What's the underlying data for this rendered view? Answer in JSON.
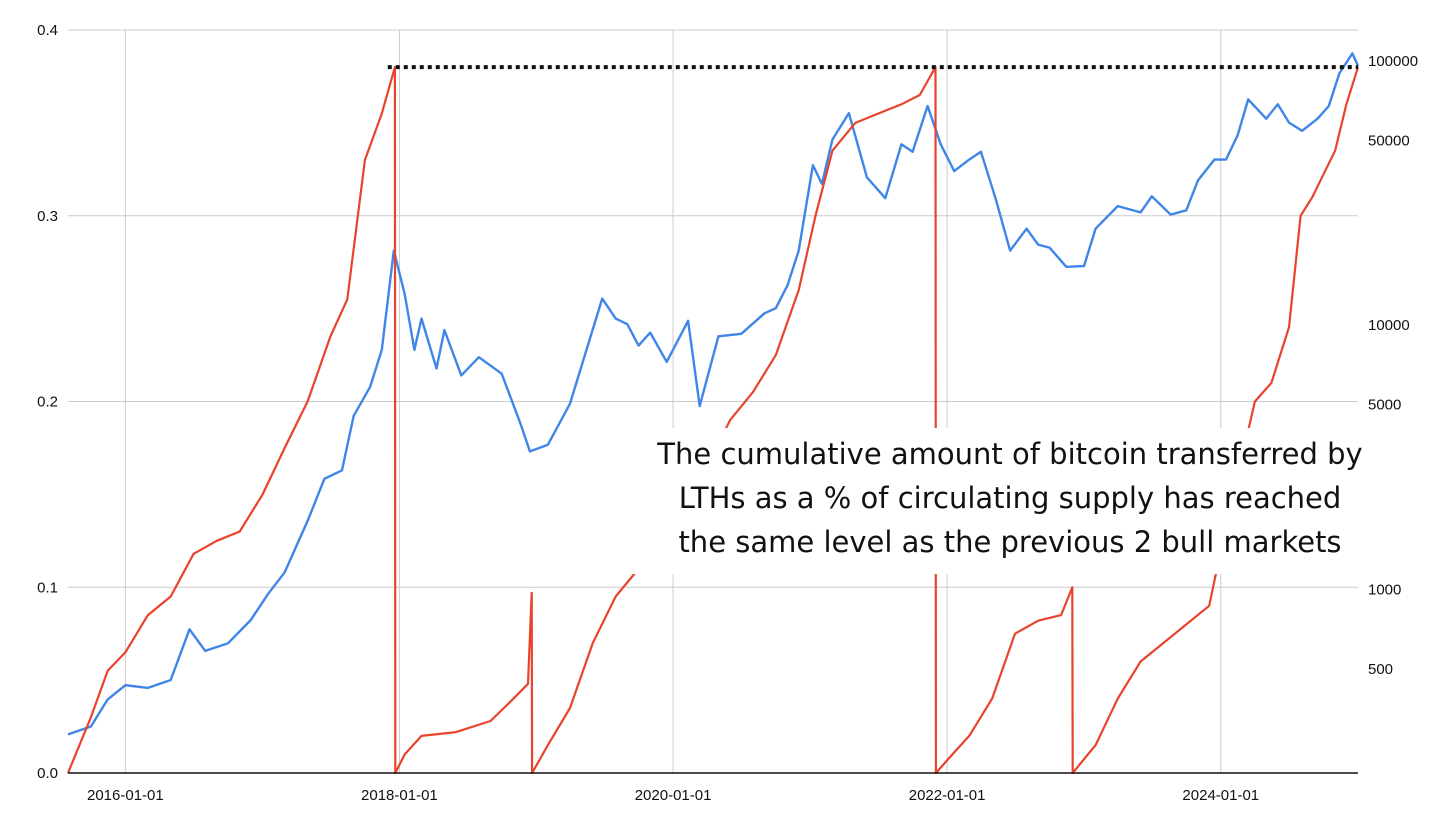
{
  "annotation": {
    "lines": [
      "The cumulative amount of bitcoin transferred by",
      "LTHs as a % of circulating supply has reached",
      "the same level as the previous 2 bull markets"
    ]
  },
  "colors": {
    "transferred_series": "#e8432d",
    "price_series": "#3f86e8",
    "reference_line": "#111111",
    "grid": "#cccccc",
    "axis": "#111111"
  },
  "chart_data": {
    "type": "line",
    "title": "",
    "xlabel": "",
    "ylabel": "",
    "ylabel_right": "",
    "grid": true,
    "x_range": [
      "2015-08-01",
      "2025-01-01"
    ],
    "y_left": {
      "range": [
        0,
        0.4
      ],
      "ticks": [
        0,
        0.1,
        0.2,
        0.3,
        0.4
      ],
      "tick_labels": [
        "0.0",
        "0.1",
        "0.2",
        "0.3",
        "0.4"
      ]
    },
    "y_right": {
      "scale": "log",
      "range": [
        200,
        130000
      ],
      "tick_values": [
        500,
        1000,
        5000,
        10000,
        50000,
        100000
      ],
      "tick_labels": [
        "500",
        "1000",
        "5000",
        "10000",
        "50000",
        "100000"
      ]
    },
    "x_ticks": [
      "2016-01-01",
      "2018-01-01",
      "2020-01-01",
      "2022-01-01",
      "2024-01-01"
    ],
    "reference_line": {
      "y": 0.38,
      "x_start": "2017-12-01",
      "x_end": "2025-01-01",
      "style": "dotted"
    },
    "series": [
      {
        "axis": "left",
        "points": [
          [
            "2015-08-01",
            0.0
          ],
          [
            "2015-10-01",
            0.03
          ],
          [
            "2015-11-15",
            0.055
          ],
          [
            "2016-01-01",
            0.065
          ],
          [
            "2016-03-01",
            0.085
          ],
          [
            "2016-05-01",
            0.095
          ],
          [
            "2016-07-01",
            0.118
          ],
          [
            "2016-09-01",
            0.125
          ],
          [
            "2016-11-01",
            0.13
          ],
          [
            "2017-01-01",
            0.15
          ],
          [
            "2017-03-01",
            0.175
          ],
          [
            "2017-05-01",
            0.2
          ],
          [
            "2017-07-01",
            0.235
          ],
          [
            "2017-08-15",
            0.255
          ],
          [
            "2017-10-01",
            0.33
          ],
          [
            "2017-11-15",
            0.355
          ],
          [
            "2017-12-20",
            0.38
          ],
          [
            "2017-12-21",
            0.0
          ],
          [
            "2018-01-15",
            0.01
          ],
          [
            "2018-03-01",
            0.02
          ],
          [
            "2018-06-01",
            0.022
          ],
          [
            "2018-09-01",
            0.028
          ],
          [
            "2018-11-01",
            0.04
          ],
          [
            "2018-12-10",
            0.048
          ],
          [
            "2018-12-20",
            0.097
          ],
          [
            "2018-12-21",
            0.0
          ],
          [
            "2019-02-01",
            0.015
          ],
          [
            "2019-04-01",
            0.035
          ],
          [
            "2019-06-01",
            0.07
          ],
          [
            "2019-08-01",
            0.095
          ],
          [
            "2019-10-01",
            0.11
          ],
          [
            "2019-12-01",
            0.125
          ],
          [
            "2020-02-01",
            0.14
          ],
          [
            "2020-04-01",
            0.165
          ],
          [
            "2020-06-01",
            0.19
          ],
          [
            "2020-08-01",
            0.205
          ],
          [
            "2020-10-01",
            0.225
          ],
          [
            "2020-12-01",
            0.26
          ],
          [
            "2021-01-15",
            0.3
          ],
          [
            "2021-03-01",
            0.335
          ],
          [
            "2021-05-01",
            0.35
          ],
          [
            "2021-07-01",
            0.355
          ],
          [
            "2021-09-01",
            0.36
          ],
          [
            "2021-10-20",
            0.365
          ],
          [
            "2021-12-01",
            0.38
          ],
          [
            "2021-12-02",
            0.0
          ],
          [
            "2022-01-15",
            0.01
          ],
          [
            "2022-03-01",
            0.02
          ],
          [
            "2022-05-01",
            0.04
          ],
          [
            "2022-07-01",
            0.075
          ],
          [
            "2022-09-01",
            0.082
          ],
          [
            "2022-11-01",
            0.085
          ],
          [
            "2022-12-01",
            0.1
          ],
          [
            "2022-12-02",
            0.0
          ],
          [
            "2023-02-01",
            0.015
          ],
          [
            "2023-04-01",
            0.04
          ],
          [
            "2023-06-01",
            0.06
          ],
          [
            "2023-08-01",
            0.07
          ],
          [
            "2023-10-01",
            0.08
          ],
          [
            "2023-12-01",
            0.09
          ],
          [
            "2024-01-01",
            0.12
          ],
          [
            "2024-02-15",
            0.16
          ],
          [
            "2024-04-01",
            0.2
          ],
          [
            "2024-05-15",
            0.21
          ],
          [
            "2024-07-01",
            0.24
          ],
          [
            "2024-08-01",
            0.3
          ],
          [
            "2024-09-01",
            0.31
          ],
          [
            "2024-11-01",
            0.335
          ],
          [
            "2024-12-01",
            0.36
          ],
          [
            "2025-01-01",
            0.38
          ]
        ]
      },
      {
        "axis": "right",
        "points": [
          [
            "2015-08-01",
            280
          ],
          [
            "2015-10-01",
            300
          ],
          [
            "2015-11-15",
            380
          ],
          [
            "2016-01-01",
            430
          ],
          [
            "2016-03-01",
            420
          ],
          [
            "2016-05-01",
            450
          ],
          [
            "2016-06-20",
            700
          ],
          [
            "2016-08-01",
            580
          ],
          [
            "2016-10-01",
            620
          ],
          [
            "2016-12-01",
            760
          ],
          [
            "2017-01-15",
            950
          ],
          [
            "2017-03-01",
            1150
          ],
          [
            "2017-05-01",
            1800
          ],
          [
            "2017-06-15",
            2600
          ],
          [
            "2017-08-01",
            2800
          ],
          [
            "2017-09-01",
            4500
          ],
          [
            "2017-10-15",
            5800
          ],
          [
            "2017-11-15",
            8000
          ],
          [
            "2017-12-17",
            19000
          ],
          [
            "2018-01-15",
            13000
          ],
          [
            "2018-02-10",
            8000
          ],
          [
            "2018-03-01",
            10500
          ],
          [
            "2018-04-10",
            6800
          ],
          [
            "2018-05-01",
            9500
          ],
          [
            "2018-06-15",
            6400
          ],
          [
            "2018-08-01",
            7500
          ],
          [
            "2018-10-01",
            6500
          ],
          [
            "2018-11-20",
            4200
          ],
          [
            "2018-12-15",
            3300
          ],
          [
            "2019-02-01",
            3500
          ],
          [
            "2019-04-01",
            5000
          ],
          [
            "2019-05-15",
            8000
          ],
          [
            "2019-06-26",
            12500
          ],
          [
            "2019-08-01",
            10500
          ],
          [
            "2019-09-01",
            10000
          ],
          [
            "2019-10-01",
            8300
          ],
          [
            "2019-11-01",
            9300
          ],
          [
            "2019-12-15",
            7200
          ],
          [
            "2020-02-10",
            10300
          ],
          [
            "2020-03-12",
            4900
          ],
          [
            "2020-05-01",
            9000
          ],
          [
            "2020-07-01",
            9200
          ],
          [
            "2020-09-01",
            11000
          ],
          [
            "2020-10-01",
            11500
          ],
          [
            "2020-11-01",
            14000
          ],
          [
            "2020-12-01",
            19000
          ],
          [
            "2021-01-08",
            40000
          ],
          [
            "2021-02-01",
            34000
          ],
          [
            "2021-03-01",
            50000
          ],
          [
            "2021-04-14",
            63000
          ],
          [
            "2021-06-01",
            36000
          ],
          [
            "2021-07-20",
            30000
          ],
          [
            "2021-09-01",
            48000
          ],
          [
            "2021-10-01",
            45000
          ],
          [
            "2021-11-10",
            67000
          ],
          [
            "2021-12-15",
            48000
          ],
          [
            "2022-01-20",
            38000
          ],
          [
            "2022-03-01",
            42000
          ],
          [
            "2022-04-01",
            45000
          ],
          [
            "2022-05-10",
            30000
          ],
          [
            "2022-06-18",
            19000
          ],
          [
            "2022-08-01",
            23000
          ],
          [
            "2022-09-01",
            20000
          ],
          [
            "2022-10-01",
            19500
          ],
          [
            "2022-11-15",
            16500
          ],
          [
            "2023-01-01",
            16600
          ],
          [
            "2023-02-01",
            23000
          ],
          [
            "2023-04-01",
            28000
          ],
          [
            "2023-06-01",
            26500
          ],
          [
            "2023-07-01",
            30500
          ],
          [
            "2023-08-20",
            26000
          ],
          [
            "2023-10-01",
            27000
          ],
          [
            "2023-11-01",
            35000
          ],
          [
            "2023-12-15",
            42000
          ],
          [
            "2024-01-15",
            42000
          ],
          [
            "2024-02-15",
            52000
          ],
          [
            "2024-03-14",
            71000
          ],
          [
            "2024-05-01",
            60000
          ],
          [
            "2024-06-01",
            68000
          ],
          [
            "2024-07-01",
            58000
          ],
          [
            "2024-08-05",
            54000
          ],
          [
            "2024-09-15",
            60000
          ],
          [
            "2024-10-15",
            67000
          ],
          [
            "2024-11-12",
            89000
          ],
          [
            "2024-12-17",
            106000
          ],
          [
            "2025-01-01",
            95000
          ]
        ]
      }
    ]
  }
}
